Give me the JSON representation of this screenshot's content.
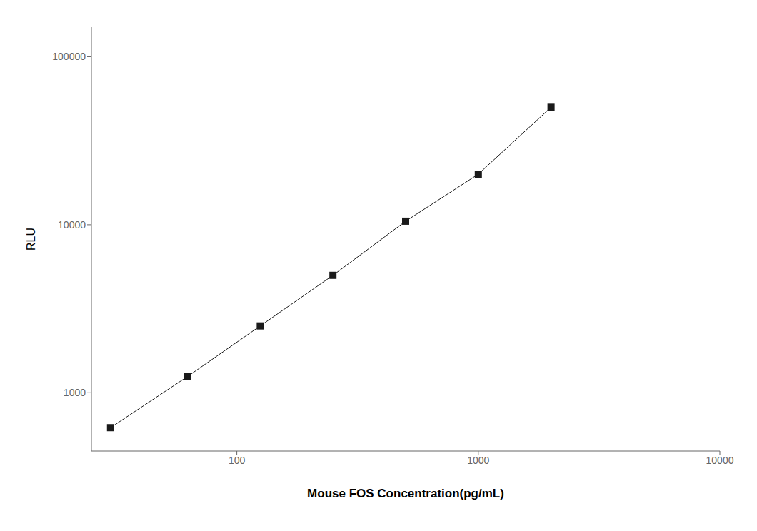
{
  "chart_data": {
    "type": "line",
    "x": [
      30,
      62.5,
      125,
      250,
      500,
      1000,
      2000
    ],
    "values": [
      620,
      1250,
      2500,
      5000,
      10500,
      20000,
      50000
    ],
    "xlabel": "Mouse FOS Concentration(pg/mL)",
    "ylabel": "RLU",
    "xlim": [
      25,
      10000
    ],
    "ylim": [
      450,
      150000
    ],
    "xticks": [
      100,
      1000,
      10000
    ],
    "yticks": [
      1000,
      10000,
      100000
    ],
    "log": true,
    "grid": false,
    "color": "#1a1a1a",
    "marker": "square"
  }
}
